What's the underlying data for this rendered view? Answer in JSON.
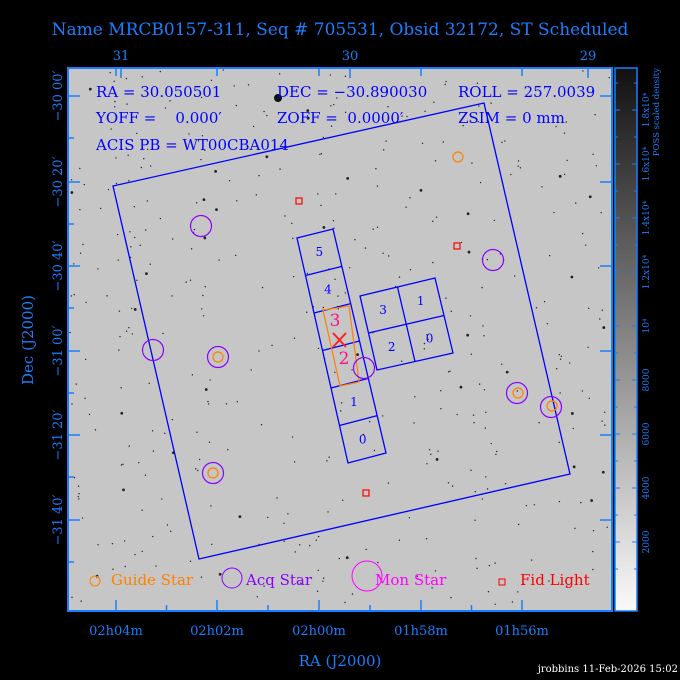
{
  "title": "Name MRCB0157-311, Seq # 705531, Obsid 32172, ST Scheduled",
  "info": {
    "ra": "RA = 30.050501",
    "dec": "DEC = −30.890030",
    "roll": "ROLL = 257.0039",
    "yoff": "YOFF =    0.000′",
    "zoff": "ZOFF =  0.0000′",
    "zsim": "ZSIM = 0 mm",
    "acis_pb": "ACIS PB = WT00CBA014"
  },
  "legend": {
    "guide": "Guide Star",
    "acq": "Acq Star",
    "mon": "Mon Star",
    "fid": "Fid Light"
  },
  "footer": "jrobbins 11-Feb-2026 15:02",
  "colors": {
    "axis": "#1a7fff",
    "fov": "#0000ff",
    "guide": "#ff8000",
    "acq": "#8a00ff",
    "mon": "#ff00ff",
    "fid": "#ff0000",
    "aimpoint": "#ff1080"
  },
  "chart_data": {
    "type": "scatter",
    "xlabel": "RA (J2000)",
    "ylabel": "Dec (J2000)",
    "x_ticks_bottom": [
      "02h04m",
      "02h02m",
      "02h00m",
      "01h58m",
      "01h56m"
    ],
    "x_ticks_top": [
      "31",
      "30",
      "29"
    ],
    "y_ticks": [
      "−30 00′",
      "−30 20′",
      "−30 40′",
      "−31 00′",
      "−31 20′",
      "−31 40′"
    ],
    "colorbar": {
      "label": "POSS scaled density",
      "ticks": [
        "2000",
        "4000",
        "6000",
        "8000",
        "10⁴",
        "1.2x10⁴",
        "1.4x10⁴",
        "1.6x10⁴",
        "1.8x10⁴"
      ],
      "range": [
        0,
        20000
      ]
    },
    "acis_s_chips": [
      "5",
      "4",
      "3",
      "2",
      "1",
      "0"
    ],
    "acis_i_chips": [
      "3",
      "1",
      "2",
      "0"
    ],
    "guide_stars": 5,
    "acq_stars": 8,
    "fid_lights": 3
  }
}
